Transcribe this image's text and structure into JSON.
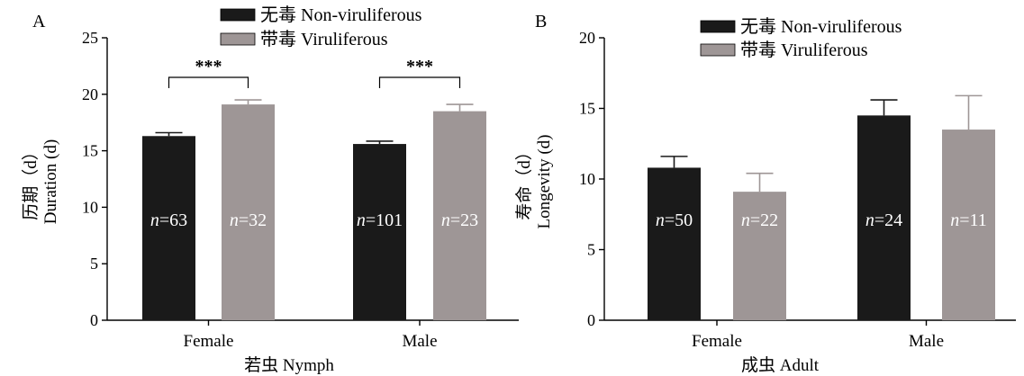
{
  "chart_data": [
    {
      "panel_label": "A",
      "type": "bar",
      "categories": [
        "Female",
        "Male"
      ],
      "xlabel": "若虫 Nymph",
      "ylabel_lines": [
        "历期（d）",
        "Duration (d)"
      ],
      "ylim": [
        0,
        25
      ],
      "yticks": [
        0,
        5,
        10,
        15,
        20,
        25
      ],
      "legend_position": "top",
      "series": [
        {
          "name": "无毒 Non-viruliferous",
          "color": "#1a1a1a",
          "values": [
            16.3,
            15.6
          ],
          "errors": [
            0.3,
            0.25
          ],
          "n_labels": [
            "n=63",
            "n=101"
          ]
        },
        {
          "name": "带毒 Viruliferous",
          "color": "#9e9696",
          "values": [
            19.1,
            18.5
          ],
          "errors": [
            0.4,
            0.6
          ],
          "n_labels": [
            "n=32",
            "n=23"
          ]
        }
      ],
      "significance": [
        "***",
        "***"
      ]
    },
    {
      "panel_label": "B",
      "type": "bar",
      "categories": [
        "Female",
        "Male"
      ],
      "xlabel": "成虫 Adult",
      "ylabel_lines": [
        "寿命（d）",
        "Longevity (d)"
      ],
      "ylim": [
        0,
        20
      ],
      "yticks": [
        0,
        5,
        10,
        15,
        20
      ],
      "legend_position": "top",
      "series": [
        {
          "name": "无毒 Non-viruliferous",
          "color": "#1a1a1a",
          "values": [
            10.8,
            14.5
          ],
          "errors": [
            0.8,
            1.1
          ],
          "n_labels": [
            "n=50",
            "n=24"
          ]
        },
        {
          "name": "带毒 Viruliferous",
          "color": "#9e9696",
          "values": [
            9.1,
            13.5
          ],
          "errors": [
            1.3,
            2.4
          ],
          "n_labels": [
            "n=22",
            "n=11"
          ]
        }
      ],
      "significance": []
    }
  ]
}
